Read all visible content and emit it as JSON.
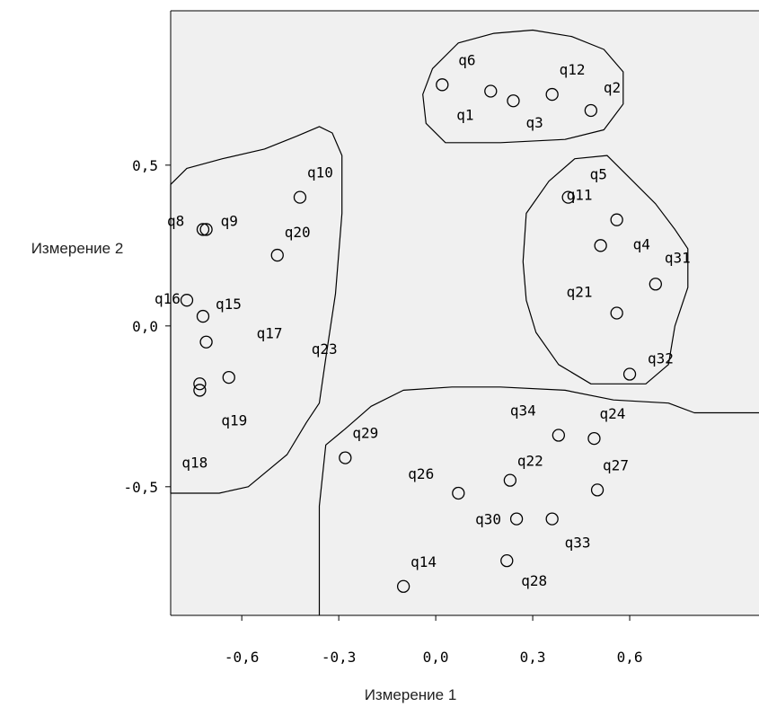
{
  "chart_data": {
    "type": "scatter",
    "xlabel": "Измерение 1",
    "ylabel": "Измерение 2",
    "xlim": [
      -0.82,
      1.0
    ],
    "ylim": [
      -0.9,
      0.98
    ],
    "xticks": [
      {
        "value": -0.6,
        "label": "-0,6"
      },
      {
        "value": -0.3,
        "label": "-0,3"
      },
      {
        "value": 0.0,
        "label": "0,0"
      },
      {
        "value": 0.3,
        "label": "0,3"
      },
      {
        "value": 0.6,
        "label": "0,6"
      }
    ],
    "yticks": [
      {
        "value": 0.5,
        "label": "0,5"
      },
      {
        "value": 0.0,
        "label": "0,0"
      },
      {
        "value": -0.5,
        "label": "-0,5"
      }
    ],
    "grid": false,
    "plot_background": "#f0f0f0",
    "points": [
      {
        "label": "q6",
        "x": 0.02,
        "y": 0.75
      },
      {
        "label": "q1",
        "x": 0.17,
        "y": 0.73
      },
      {
        "label": "q3",
        "x": 0.24,
        "y": 0.7
      },
      {
        "label": "q12",
        "x": 0.36,
        "y": 0.72
      },
      {
        "label": "q2",
        "x": 0.48,
        "y": 0.67
      },
      {
        "label": "q10",
        "x": -0.42,
        "y": 0.4
      },
      {
        "label": "q8",
        "x": -0.72,
        "y": 0.3
      },
      {
        "label": "q9",
        "x": -0.71,
        "y": 0.3
      },
      {
        "label": "q20",
        "x": -0.49,
        "y": 0.22
      },
      {
        "label": "q16",
        "x": -0.77,
        "y": 0.08
      },
      {
        "label": "q15",
        "x": -0.72,
        "y": 0.03
      },
      {
        "label": "q17",
        "x": -0.71,
        "y": -0.05
      },
      {
        "label": "q23",
        "x": -0.64,
        "y": -0.16
      },
      {
        "label": "q19",
        "x": -0.73,
        "y": -0.18
      },
      {
        "label": "q18",
        "x": -0.73,
        "y": -0.2
      },
      {
        "label": "q5",
        "x": 0.41,
        "y": 0.4
      },
      {
        "label": "q11",
        "x": 0.56,
        "y": 0.33
      },
      {
        "label": "q4",
        "x": 0.51,
        "y": 0.25
      },
      {
        "label": "q31",
        "x": 0.68,
        "y": 0.13
      },
      {
        "label": "q21",
        "x": 0.56,
        "y": 0.04
      },
      {
        "label": "q32",
        "x": 0.6,
        "y": -0.15
      },
      {
        "label": "q29",
        "x": -0.28,
        "y": -0.41
      },
      {
        "label": "q34",
        "x": 0.38,
        "y": -0.34
      },
      {
        "label": "q24",
        "x": 0.49,
        "y": -0.35
      },
      {
        "label": "q22",
        "x": 0.23,
        "y": -0.48
      },
      {
        "label": "q27",
        "x": 0.5,
        "y": -0.51
      },
      {
        "label": "q26",
        "x": 0.07,
        "y": -0.52
      },
      {
        "label": "q30",
        "x": 0.25,
        "y": -0.6
      },
      {
        "label": "q33",
        "x": 0.36,
        "y": -0.6
      },
      {
        "label": "q28",
        "x": 0.22,
        "y": -0.73
      },
      {
        "label": "q14",
        "x": -0.1,
        "y": -0.81
      }
    ],
    "cluster_outlines": [
      {
        "name": "cluster-top",
        "points": [
          [
            -0.01,
            0.8
          ],
          [
            0.07,
            0.88
          ],
          [
            0.18,
            0.91
          ],
          [
            0.3,
            0.92
          ],
          [
            0.42,
            0.9
          ],
          [
            0.52,
            0.86
          ],
          [
            0.58,
            0.79
          ],
          [
            0.58,
            0.69
          ],
          [
            0.52,
            0.61
          ],
          [
            0.4,
            0.58
          ],
          [
            0.2,
            0.57
          ],
          [
            0.03,
            0.57
          ],
          [
            -0.03,
            0.63
          ],
          [
            -0.04,
            0.72
          ]
        ]
      },
      {
        "name": "cluster-left",
        "points": [
          [
            -0.82,
            0.44
          ],
          [
            -0.77,
            0.49
          ],
          [
            -0.66,
            0.52
          ],
          [
            -0.53,
            0.55
          ],
          [
            -0.43,
            0.59
          ],
          [
            -0.36,
            0.62
          ],
          [
            -0.32,
            0.6
          ],
          [
            -0.29,
            0.53
          ],
          [
            -0.29,
            0.35
          ],
          [
            -0.31,
            0.1
          ],
          [
            -0.34,
            -0.1
          ],
          [
            -0.36,
            -0.24
          ],
          [
            -0.4,
            -0.3
          ],
          [
            -0.46,
            -0.4
          ],
          [
            -0.58,
            -0.5
          ],
          [
            -0.67,
            -0.52
          ],
          [
            -0.76,
            -0.52
          ],
          [
            -0.82,
            -0.52
          ]
        ]
      },
      {
        "name": "cluster-right",
        "points": [
          [
            0.43,
            0.52
          ],
          [
            0.53,
            0.53
          ],
          [
            0.6,
            0.46
          ],
          [
            0.68,
            0.38
          ],
          [
            0.74,
            0.3
          ],
          [
            0.78,
            0.24
          ],
          [
            0.78,
            0.12
          ],
          [
            0.74,
            0.0
          ],
          [
            0.72,
            -0.12
          ],
          [
            0.65,
            -0.18
          ],
          [
            0.48,
            -0.18
          ],
          [
            0.38,
            -0.12
          ],
          [
            0.31,
            -0.02
          ],
          [
            0.28,
            0.08
          ],
          [
            0.27,
            0.2
          ],
          [
            0.28,
            0.35
          ],
          [
            0.35,
            0.45
          ]
        ]
      },
      {
        "name": "cluster-bottom",
        "points": [
          [
            -0.36,
            -0.9
          ],
          [
            -0.36,
            -0.56
          ],
          [
            -0.34,
            -0.37
          ],
          [
            -0.28,
            -0.32
          ],
          [
            -0.2,
            -0.25
          ],
          [
            -0.1,
            -0.2
          ],
          [
            0.05,
            -0.19
          ],
          [
            0.2,
            -0.19
          ],
          [
            0.4,
            -0.2
          ],
          [
            0.55,
            -0.23
          ],
          [
            0.72,
            -0.24
          ],
          [
            0.8,
            -0.27
          ],
          [
            0.9,
            -0.27
          ],
          [
            1.0,
            -0.27
          ]
        ]
      }
    ]
  }
}
